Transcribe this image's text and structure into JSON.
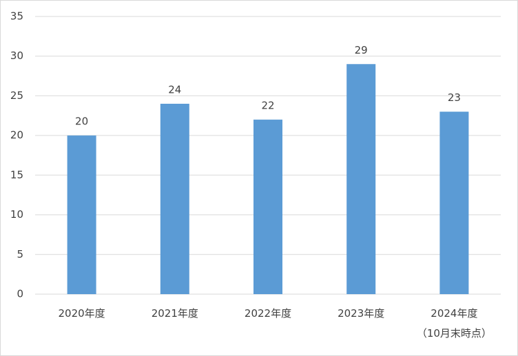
{
  "chart_data": {
    "type": "bar",
    "categories": [
      "2020年度",
      "2021年度",
      "2022年度",
      "2023年度",
      "2024年度\n（10月末時点）"
    ],
    "values": [
      20,
      24,
      22,
      29,
      23
    ],
    "color": "#5b9bd5",
    "ylim": [
      0,
      35
    ],
    "yticks": [
      0,
      5,
      10,
      15,
      20,
      25,
      30,
      35
    ],
    "grid": true
  }
}
